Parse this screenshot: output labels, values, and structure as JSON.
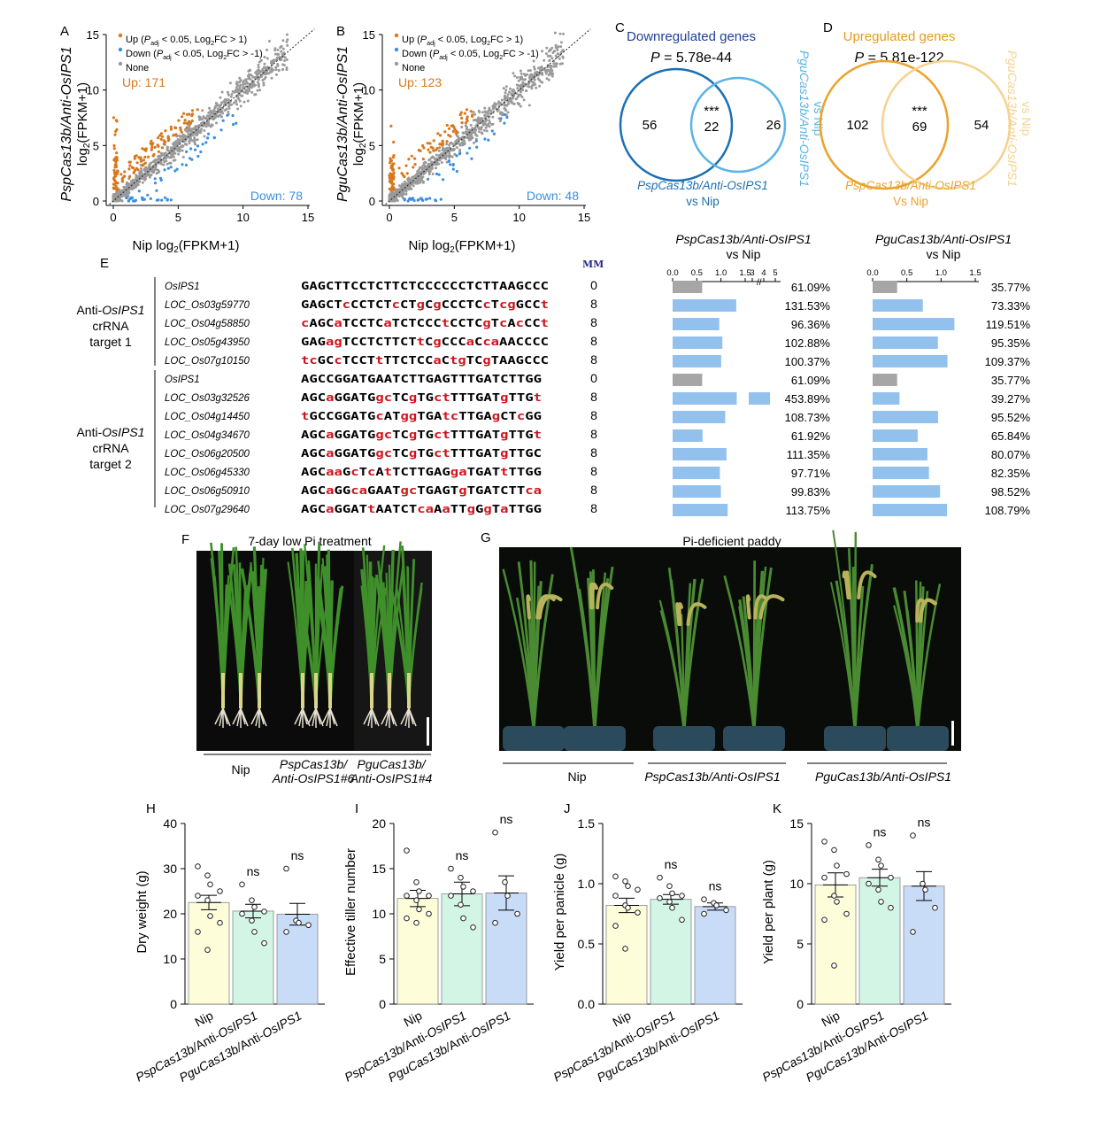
{
  "panels": {
    "A": {
      "letter": "A",
      "ylabel_italic": "PspCas13b/Anti-OsIPS1",
      "ylabel2": "log2(FPKM+1)",
      "xlabel": "Nip log2(FPKM+1)",
      "up_text": "Up: 171",
      "down_text": "Down: 78",
      "legend": [
        {
          "text": "Up (Padj < 0.05, Log2FC > 1)",
          "color": "#d8771c"
        },
        {
          "text": "Down (Padj < 0.05, Log2FC > -1)",
          "color": "#3b8fe0"
        },
        {
          "text": "None",
          "color": "#999999"
        }
      ]
    },
    "B": {
      "letter": "B",
      "ylabel_italic": "PguCas13b/Anti-OsIPS1",
      "ylabel2": "log2(FPKM+1)",
      "xlabel": "Nip log2(FPKM+1)",
      "up_text": "Up: 123",
      "down_text": "Down: 48",
      "legend": [
        {
          "text": "Up (Padj < 0.05, Log2FC > 1)",
          "color": "#d8771c"
        },
        {
          "text": "Down (Padj < 0.05, Log2FC > -1)",
          "color": "#3b8fe0"
        },
        {
          "text": "None",
          "color": "#999999"
        }
      ]
    },
    "C": {
      "letter": "C",
      "title": "Downregulated genes",
      "pvalue": "P = 5.78e-44",
      "left_count": "56",
      "overlap": "22",
      "right_count": "26",
      "stars": "***",
      "left_label": "PspCas13b/Anti-OsIPS1",
      "left_label2": "vs Nip",
      "right_label": "PguCas13b/Anti-OsIPS1",
      "right_label2": "vs Nip",
      "title_color": "#1f3f9a",
      "left_color": "#1b6fb3",
      "right_color": "#5ab4e5"
    },
    "D": {
      "letter": "D",
      "title": "Upregulated genes",
      "pvalue": "P = 5.81e-122",
      "left_count": "102",
      "overlap": "69",
      "right_count": "54",
      "stars": "***",
      "left_label": "PspCas13b/Anti-OsIPS1",
      "left_label2": "Vs Nip",
      "right_label": "PguCas13b/Anti-OsIPS1",
      "right_label2": "vs Nip",
      "title_color": "#e89a1c",
      "left_color": "#eba22a",
      "right_color": "#f5d28f"
    },
    "E": {
      "letter": "E",
      "mm_header": "MM",
      "group1_label": [
        "Anti-OsIPS1",
        "crRNA",
        "target 1"
      ],
      "group2_label": [
        "Anti-OsIPS1",
        "crRNA",
        "target 2"
      ],
      "rows": [
        {
          "gene": "OsIPS1",
          "seq": "GAGCTTCCTCTTCTCCCCCCTCTTAAGCCC",
          "red": "",
          "mm": "0"
        },
        {
          "gene": "LOC_Os03g59770",
          "seq": "GAGCTcCCTCTcCTgCgCCCTCcTcgGCCt",
          "red": "auto",
          "mm": "8"
        },
        {
          "gene": "LOC_Os04g58850",
          "seq": "cAGCaTCCTCaTCTCCCtCCTCgTcAcCCt",
          "red": "auto",
          "mm": "8"
        },
        {
          "gene": "LOC_Os05g43950",
          "seq": "GAGagTCCTCTTCTtCgCCCaCcaAACCCC",
          "red": "auto",
          "mm": "8"
        },
        {
          "gene": "LOC_Os07g10150",
          "seq": "tcGCcTCCTtTTCTCCaCtgTCgTAAGCCC",
          "red": "auto",
          "mm": "8"
        },
        {
          "gene": "OsIPS1",
          "seq": "AGCCGGATGAATCTTGAGTTTGATCTTGG",
          "red": "",
          "mm": "0"
        },
        {
          "gene": "LOC_Os03g32526",
          "seq": "AGCaGGATGgcTCgTGctTTTGATgTTGt",
          "red": "auto",
          "mm": "8"
        },
        {
          "gene": "LOC_Os04g14450",
          "seq": "tGCCGGATGcATggTGAtcTTGAgCTcGG",
          "red": "auto",
          "mm": "8"
        },
        {
          "gene": "LOC_Os04g34670",
          "seq": "AGCaGGATGgcTCgTGctTTTGATgTTGt",
          "red": "auto",
          "mm": "8"
        },
        {
          "gene": "LOC_Os06g20500",
          "seq": "AGCaGGATGgcTCgTGctTTTGATgTTGC",
          "red": "auto",
          "mm": "8"
        },
        {
          "gene": "LOC_Os06g45330",
          "seq": "AGCaaGcTcAtTCTTGAGgaTGATtTTGG",
          "red": "auto",
          "mm": "8"
        },
        {
          "gene": "LOC_Os06g50910",
          "seq": "AGCaGGcaGAATgcTGAGTgTGATCTTca",
          "red": "auto",
          "mm": "8"
        },
        {
          "gene": "LOC_Os07g29640",
          "seq": "AGCaGGATtAATCTcaAaTTgGgTaTTGG",
          "red": "auto",
          "mm": "8"
        }
      ]
    },
    "E_bars_left": {
      "title": "PspCas13b/Anti-OsIPS1",
      "title2": "vs Nip",
      "ticks": [
        "0.0",
        "0.5",
        "1.0",
        "1.5",
        "3",
        "4",
        "5"
      ],
      "values": [
        0.6109,
        1.3153,
        0.9636,
        1.0288,
        1.0037,
        0.6109,
        4.5389,
        1.0873,
        0.6192,
        1.1135,
        0.9771,
        0.9983,
        1.1375
      ],
      "labels": [
        "61.09%",
        "131.53%",
        "96.36%",
        "102.88%",
        "100.37%",
        "61.09%",
        "453.89%",
        "108.73%",
        "61.92%",
        "111.35%",
        "97.71%",
        "99.83%",
        "113.75%"
      ]
    },
    "E_bars_right": {
      "title": "PguCas13b/Anti-OsIPS1",
      "title2": "vs Nip",
      "ticks": [
        "0.0",
        "0.5",
        "1.0",
        "1.5"
      ],
      "values": [
        0.3577,
        0.7333,
        1.1951,
        0.9535,
        1.0937,
        0.3577,
        0.3927,
        0.9552,
        0.6584,
        0.8007,
        0.8235,
        0.9852,
        1.0879
      ],
      "labels": [
        "35.77%",
        "73.33%",
        "119.51%",
        "95.35%",
        "109.37%",
        "35.77%",
        "39.27%",
        "95.52%",
        "65.84%",
        "80.07%",
        "82.35%",
        "98.52%",
        "108.79%"
      ]
    },
    "F": {
      "letter": "F",
      "title": "7-day low Pi treatment",
      "groups": [
        "Nip",
        "PspCas13b/",
        "Anti-OsIPS1#6",
        "PguCas13b/",
        "Anti-OsIPS1#4"
      ]
    },
    "G": {
      "letter": "G",
      "title": "Pi-deficient paddy",
      "groups": [
        "Nip",
        "PspCas13b/Anti-OsIPS1",
        "PguCas13b/Anti-OsIPS1"
      ]
    }
  },
  "chart_data": [
    {
      "panel": "H",
      "type": "bar",
      "categories": [
        "Nip",
        "PspCas13b/Anti-OsIPS1",
        "PguCas13b/Anti-OsIPS1"
      ],
      "values": [
        22.5,
        20.6,
        19.9
      ],
      "errors": [
        1.6,
        1.5,
        2.4
      ],
      "points": [
        [
          30.5,
          28.5,
          26.5,
          25.0,
          24.0,
          23.0,
          19.5,
          18.0,
          16.0,
          12.0
        ],
        [
          26.5,
          23.0,
          21.5,
          20.5,
          20.0,
          18.5,
          16.0,
          13.5
        ],
        [
          30.0,
          18.5,
          18.0,
          17.5,
          16.0
        ]
      ],
      "sig": [
        "",
        "ns",
        "ns"
      ],
      "ylabel": "Dry weight (g)",
      "ylim": [
        0,
        40
      ],
      "yticks": [
        "0",
        "10",
        "20",
        "30",
        "40"
      ],
      "colors": [
        "#fdfdd9",
        "#d2f5e6",
        "#c9dcf7"
      ]
    },
    {
      "panel": "I",
      "type": "bar",
      "categories": [
        "Nip",
        "PspCas13b/Anti-OsIPS1",
        "PguCas13b/Anti-OsIPS1"
      ],
      "values": [
        11.7,
        12.2,
        12.3
      ],
      "errors": [
        0.9,
        1.3,
        1.9
      ],
      "points": [
        [
          17.0,
          13.5,
          12.5,
          12.0,
          12.0,
          11.5,
          10.5,
          10.0,
          9.5,
          9.0
        ],
        [
          15.0,
          14.0,
          13.0,
          12.5,
          12.0,
          11.0,
          9.5,
          8.5
        ],
        [
          19.0,
          13.5,
          12.0,
          10.0,
          9.0
        ]
      ],
      "sig": [
        "",
        "ns",
        "ns"
      ],
      "ylabel": "Effective tiller number",
      "ylim": [
        0,
        20
      ],
      "yticks": [
        "0",
        "5",
        "10",
        "15",
        "20"
      ],
      "colors": [
        "#fdfdd9",
        "#d2f5e6",
        "#c9dcf7"
      ]
    },
    {
      "panel": "J",
      "type": "bar",
      "categories": [
        "Nip",
        "PspCas13b/Anti-OsIPS1",
        "PguCas13b/Anti-OsIPS1"
      ],
      "values": [
        0.82,
        0.87,
        0.81
      ],
      "errors": [
        0.06,
        0.04,
        0.03
      ],
      "points": [
        [
          1.06,
          1.02,
          0.98,
          0.95,
          0.9,
          0.82,
          0.8,
          0.76,
          0.65,
          0.46
        ],
        [
          1.05,
          0.98,
          0.92,
          0.9,
          0.88,
          0.85,
          0.8,
          0.7
        ],
        [
          0.87,
          0.84,
          0.82,
          0.78,
          0.75
        ]
      ],
      "sig": [
        "",
        "ns",
        "ns"
      ],
      "ylabel": "Yield per panicle (g)",
      "ylim": [
        0,
        1.5
      ],
      "yticks": [
        "0.0",
        "0.5",
        "1.0",
        "1.5"
      ],
      "colors": [
        "#fdfdd9",
        "#d2f5e6",
        "#c9dcf7"
      ]
    },
    {
      "panel": "K",
      "type": "bar",
      "categories": [
        "Nip",
        "PspCas13b/Anti-OsIPS1",
        "PguCas13b/Anti-OsIPS1"
      ],
      "values": [
        9.9,
        10.5,
        9.8
      ],
      "errors": [
        1.0,
        0.7,
        1.2
      ],
      "points": [
        [
          13.5,
          12.8,
          11.5,
          10.8,
          10.5,
          9.0,
          8.5,
          7.5,
          7.0,
          3.2
        ],
        [
          13.2,
          12.0,
          11.5,
          10.5,
          10.0,
          9.5,
          8.5,
          8.0
        ],
        [
          14.0,
          10.0,
          9.5,
          8.0,
          6.0
        ]
      ],
      "sig": [
        "",
        "ns",
        "ns"
      ],
      "ylabel": "Yield per plant (g)",
      "ylim": [
        0,
        15
      ],
      "yticks": [
        "0",
        "5",
        "10",
        "15"
      ],
      "colors": [
        "#fdfdd9",
        "#d2f5e6",
        "#c9dcf7"
      ]
    }
  ]
}
